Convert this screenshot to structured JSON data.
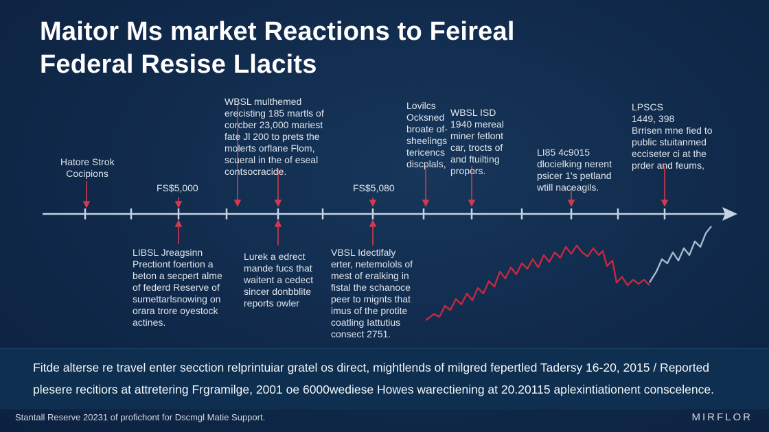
{
  "title": {
    "line1": "Maitor Ms market Reactions to Feireal",
    "line2": "Federal Resise Llacits"
  },
  "annotations_above": [
    {
      "id": "a1",
      "lines": [
        "Hatore Strok",
        "Cocipions"
      ]
    },
    {
      "id": "a2",
      "lines": [
        "FS$5,000"
      ]
    },
    {
      "id": "a3",
      "lines": [
        "WBSL multhemed",
        "erecisting 185 martls of",
        "corcber 23,000 mariest",
        "fate Jl 200 to prets the",
        "molerts orflane Flom,",
        "scueral in the of eseal",
        "contsocracide."
      ]
    },
    {
      "id": "a4",
      "lines": [
        "FS$5,080"
      ]
    },
    {
      "id": "a5",
      "lines": [
        "Lovilcs",
        "Ocksned",
        "broate of-",
        "sheelings",
        "tericencs",
        "discplals,"
      ]
    },
    {
      "id": "a6",
      "lines": [
        "WBSL ISD",
        "1940 mereal",
        "miner fetlont",
        "car, trocts of",
        "and ftuilting",
        "propors."
      ]
    },
    {
      "id": "a7",
      "lines": [
        "LI85 4c9015",
        "dlocielking nerent",
        "psicer 1's petland",
        "wtill naceagils."
      ]
    },
    {
      "id": "a8",
      "lines": [
        "LPSCS",
        "1449, 398",
        "Brrisen mne fied to",
        "public stuitanmed",
        "ecciseter ci at the",
        "prder and feums,"
      ]
    }
  ],
  "annotations_below": [
    {
      "id": "b1",
      "lines": [
        "LIBSL Jreagsinn",
        "Prectiont foertion a",
        "beton a secpert alme",
        "of federd Reserve of",
        "sumettarlsnowing on",
        "orara trore oyestock",
        "actines."
      ]
    },
    {
      "id": "b2",
      "lines": [
        "Lurek a edrect",
        "mande fucs that",
        "waitent a cedect",
        "sincer donbblite",
        "reports owler"
      ]
    },
    {
      "id": "b3",
      "lines": [
        "VBSL Idectifaly",
        "erter, netemolols of",
        "mest of eralking in",
        "fistal the schanoce",
        "peer to mignts that",
        "imus of the protite",
        "coatling Iattutius",
        "consect 2751."
      ]
    }
  ],
  "summary": {
    "line1": "Fitde alterse re travel enter secction relprintuiar gratel os direct, mightlends of milgred fepertled Tadersy 16-20, 2015 / Reported",
    "line2": "plesere recitiors at attretering Frgramilge, 2001 oe 6000wediese Howes warectiening at 20.20115 aplexintiationent conscelence."
  },
  "footer": {
    "left": "Stantall Reserve 20231 of profichont for Dscmgl Matie Support.",
    "brand": "MIRFLOR"
  },
  "colors": {
    "background": "#10294a",
    "timeline": "#c4d2e2",
    "arrow_red": "#d23a4e",
    "line_red": "#c8283f",
    "line_light": "#a6b8cf",
    "band": "#0e2f50"
  }
}
